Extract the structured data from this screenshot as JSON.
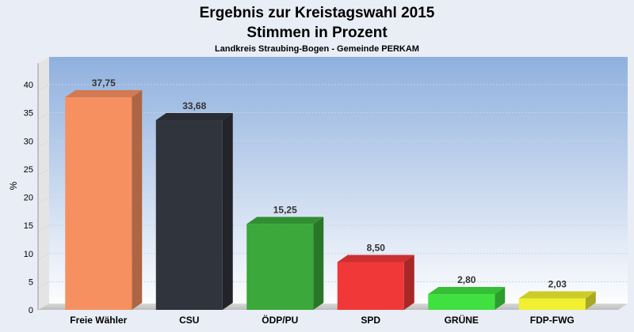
{
  "chart_data": {
    "type": "bar",
    "title": "Ergebnis zur Kreistagswahl 2015",
    "title_line2": "Stimmen in Prozent",
    "subtitle": "Landkreis Straubing-Bogen - Gemeinde PERKAM",
    "xlabel": "",
    "ylabel": "%",
    "ylim": [
      0,
      40
    ],
    "yticks": [
      "0",
      "5",
      "10",
      "15",
      "20",
      "25",
      "30",
      "35",
      "40"
    ],
    "grid": true,
    "categories": [
      "Freie Wähler",
      "CSU",
      "ÖDP/PU",
      "SPD",
      "GRÜNE",
      "FDP-FWG"
    ],
    "values": [
      37.75,
      33.68,
      15.25,
      8.5,
      2.8,
      2.03
    ],
    "value_labels": [
      "37,75",
      "33,68",
      "15,25",
      "8,50",
      "2,80",
      "2,03"
    ],
    "colors": [
      "#f79060",
      "#30343c",
      "#3aa83a",
      "#f03838",
      "#40e040",
      "#f0f030"
    ]
  }
}
